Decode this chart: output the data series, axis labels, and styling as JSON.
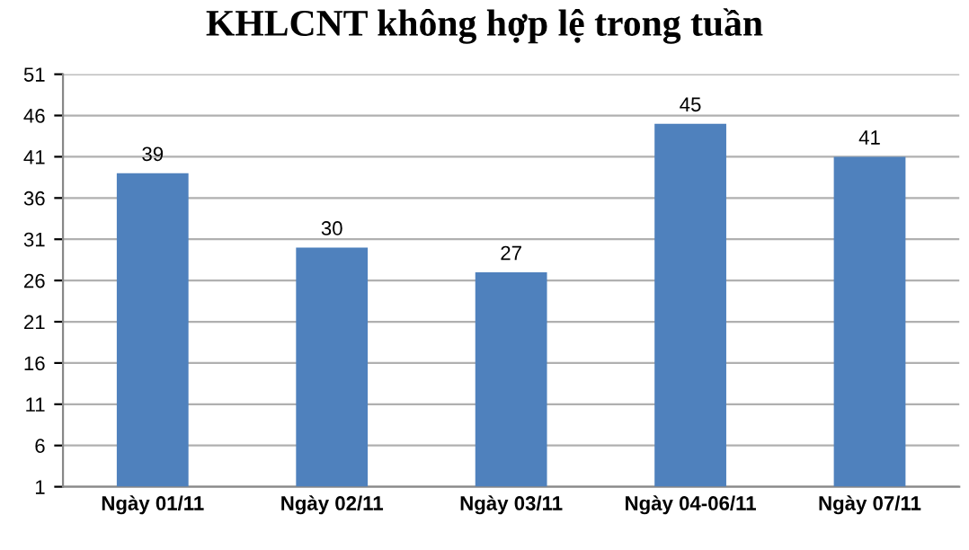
{
  "chart_data": {
    "type": "bar",
    "title": "KHLCNT không hợp lệ trong tuần",
    "categories": [
      "Ngày 01/11",
      "Ngày 02/11",
      "Ngày 03/11",
      "Ngày 04-06/11",
      "Ngày 07/11"
    ],
    "values": [
      39,
      30,
      27,
      45,
      41
    ],
    "color": "#4f81bd",
    "ylim": [
      1,
      51
    ],
    "yticks": [
      1,
      6,
      11,
      16,
      21,
      26,
      31,
      36,
      41,
      46,
      51
    ],
    "grid": "y",
    "data_labels": true
  }
}
